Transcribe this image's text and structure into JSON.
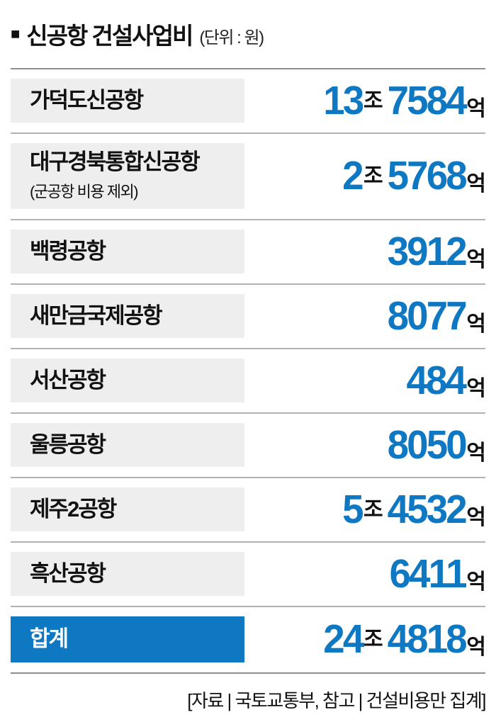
{
  "title": {
    "bullet": "■",
    "text": "신공항 건설사업비",
    "unit_note": "(단위 : 원)"
  },
  "colors": {
    "accent_blue": "#0f78c2",
    "label_bg": "#eeeeee",
    "row_separator": "#b2b2b2",
    "frame_line": "#8f8f8f",
    "total_label_text": "#ffffff"
  },
  "rows": [
    {
      "label": "가덕도신공항",
      "jo_num": "13",
      "jo_unit": "조",
      "eok_num": "7584",
      "eok_unit": "억"
    },
    {
      "label": "대구경북통합신공항",
      "sublabel": "(군공항 비용 제외)",
      "jo_num": "2",
      "jo_unit": "조",
      "eok_num": "5768",
      "eok_unit": "억"
    },
    {
      "label": "백령공항",
      "eok_num": "3912",
      "eok_unit": "억"
    },
    {
      "label": "새만금국제공항",
      "eok_num": "8077",
      "eok_unit": "억"
    },
    {
      "label": "서산공항",
      "eok_num": "484",
      "eok_unit": "억"
    },
    {
      "label": "울릉공항",
      "eok_num": "8050",
      "eok_unit": "억"
    },
    {
      "label": "제주2공항",
      "jo_num": "5",
      "jo_unit": "조",
      "eok_num": "4532",
      "eok_unit": "억"
    },
    {
      "label": "흑산공항",
      "eok_num": "6411",
      "eok_unit": "억"
    },
    {
      "label": "합계",
      "jo_num": "24",
      "jo_unit": "조",
      "eok_num": "4818",
      "eok_unit": "억"
    }
  ],
  "footer": {
    "text": "[자료 | 국토교통부, 참고 | 건설비용만 집계]"
  },
  "chart_data": {
    "type": "table",
    "title": "신공항 건설사업비",
    "unit": "원",
    "categories": [
      "가덕도신공항",
      "대구경북통합신공항 (군공항 비용 제외)",
      "백령공항",
      "새만금국제공항",
      "서산공항",
      "울릉공항",
      "제주2공항",
      "흑산공항",
      "합계"
    ],
    "values_in_eok_won": [
      137584,
      25768,
      3912,
      8077,
      484,
      8050,
      54532,
      6411,
      244818
    ],
    "value_labels": [
      "13조7584억",
      "2조5768억",
      "3912억",
      "8077억",
      "484억",
      "8050억",
      "5조4532억",
      "6411억",
      "24조4818억"
    ],
    "highlight_row": "합계",
    "source_note": "[자료 | 국토교통부, 참고 | 건설비용만 집계]"
  }
}
